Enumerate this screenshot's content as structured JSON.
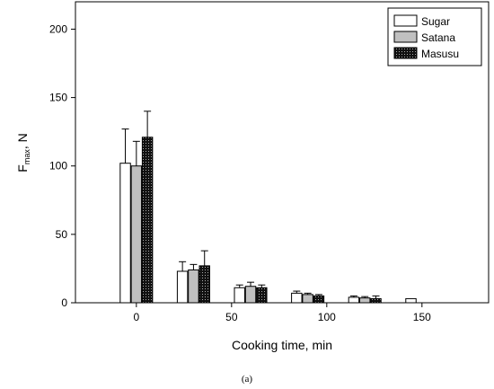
{
  "chart_data": {
    "type": "bar",
    "xlabel": "Cooking time, min",
    "ylabel_main": "F",
    "ylabel_sub": "max",
    "ylabel_rest": ", N",
    "caption": "(a)",
    "xlim": [
      -32,
      185
    ],
    "ylim": [
      0,
      220
    ],
    "x_ticks": [
      {
        "value": 0,
        "label": "0"
      },
      {
        "value": 50,
        "label": "50"
      },
      {
        "value": 100,
        "label": "100"
      },
      {
        "value": 150,
        "label": "150"
      }
    ],
    "y_ticks": [
      {
        "value": 0,
        "label": "0"
      },
      {
        "value": 50,
        "label": "50"
      },
      {
        "value": 100,
        "label": "100"
      },
      {
        "value": 150,
        "label": "150"
      },
      {
        "value": 200,
        "label": "200"
      }
    ],
    "x": [
      0,
      30,
      60,
      90,
      120,
      150
    ],
    "bar_width": 5.4,
    "group_offsets": [
      -5.8,
      0,
      5.8
    ],
    "legend_position": "top-right",
    "grid": false,
    "series": [
      {
        "name": "Sugar",
        "pattern": "white",
        "values": [
          102,
          23,
          11,
          7,
          4,
          3
        ],
        "errors": [
          25,
          7,
          2,
          1.5,
          1,
          0
        ]
      },
      {
        "name": "Satana",
        "pattern": "gray",
        "values": [
          100,
          24,
          12,
          6,
          3.5,
          null
        ],
        "errors": [
          18,
          4,
          3,
          1,
          1,
          null
        ]
      },
      {
        "name": "Masusu",
        "pattern": "dots",
        "values": [
          121,
          27,
          11,
          5,
          3,
          null
        ],
        "errors": [
          19,
          11,
          2,
          1,
          2,
          null
        ]
      }
    ]
  }
}
